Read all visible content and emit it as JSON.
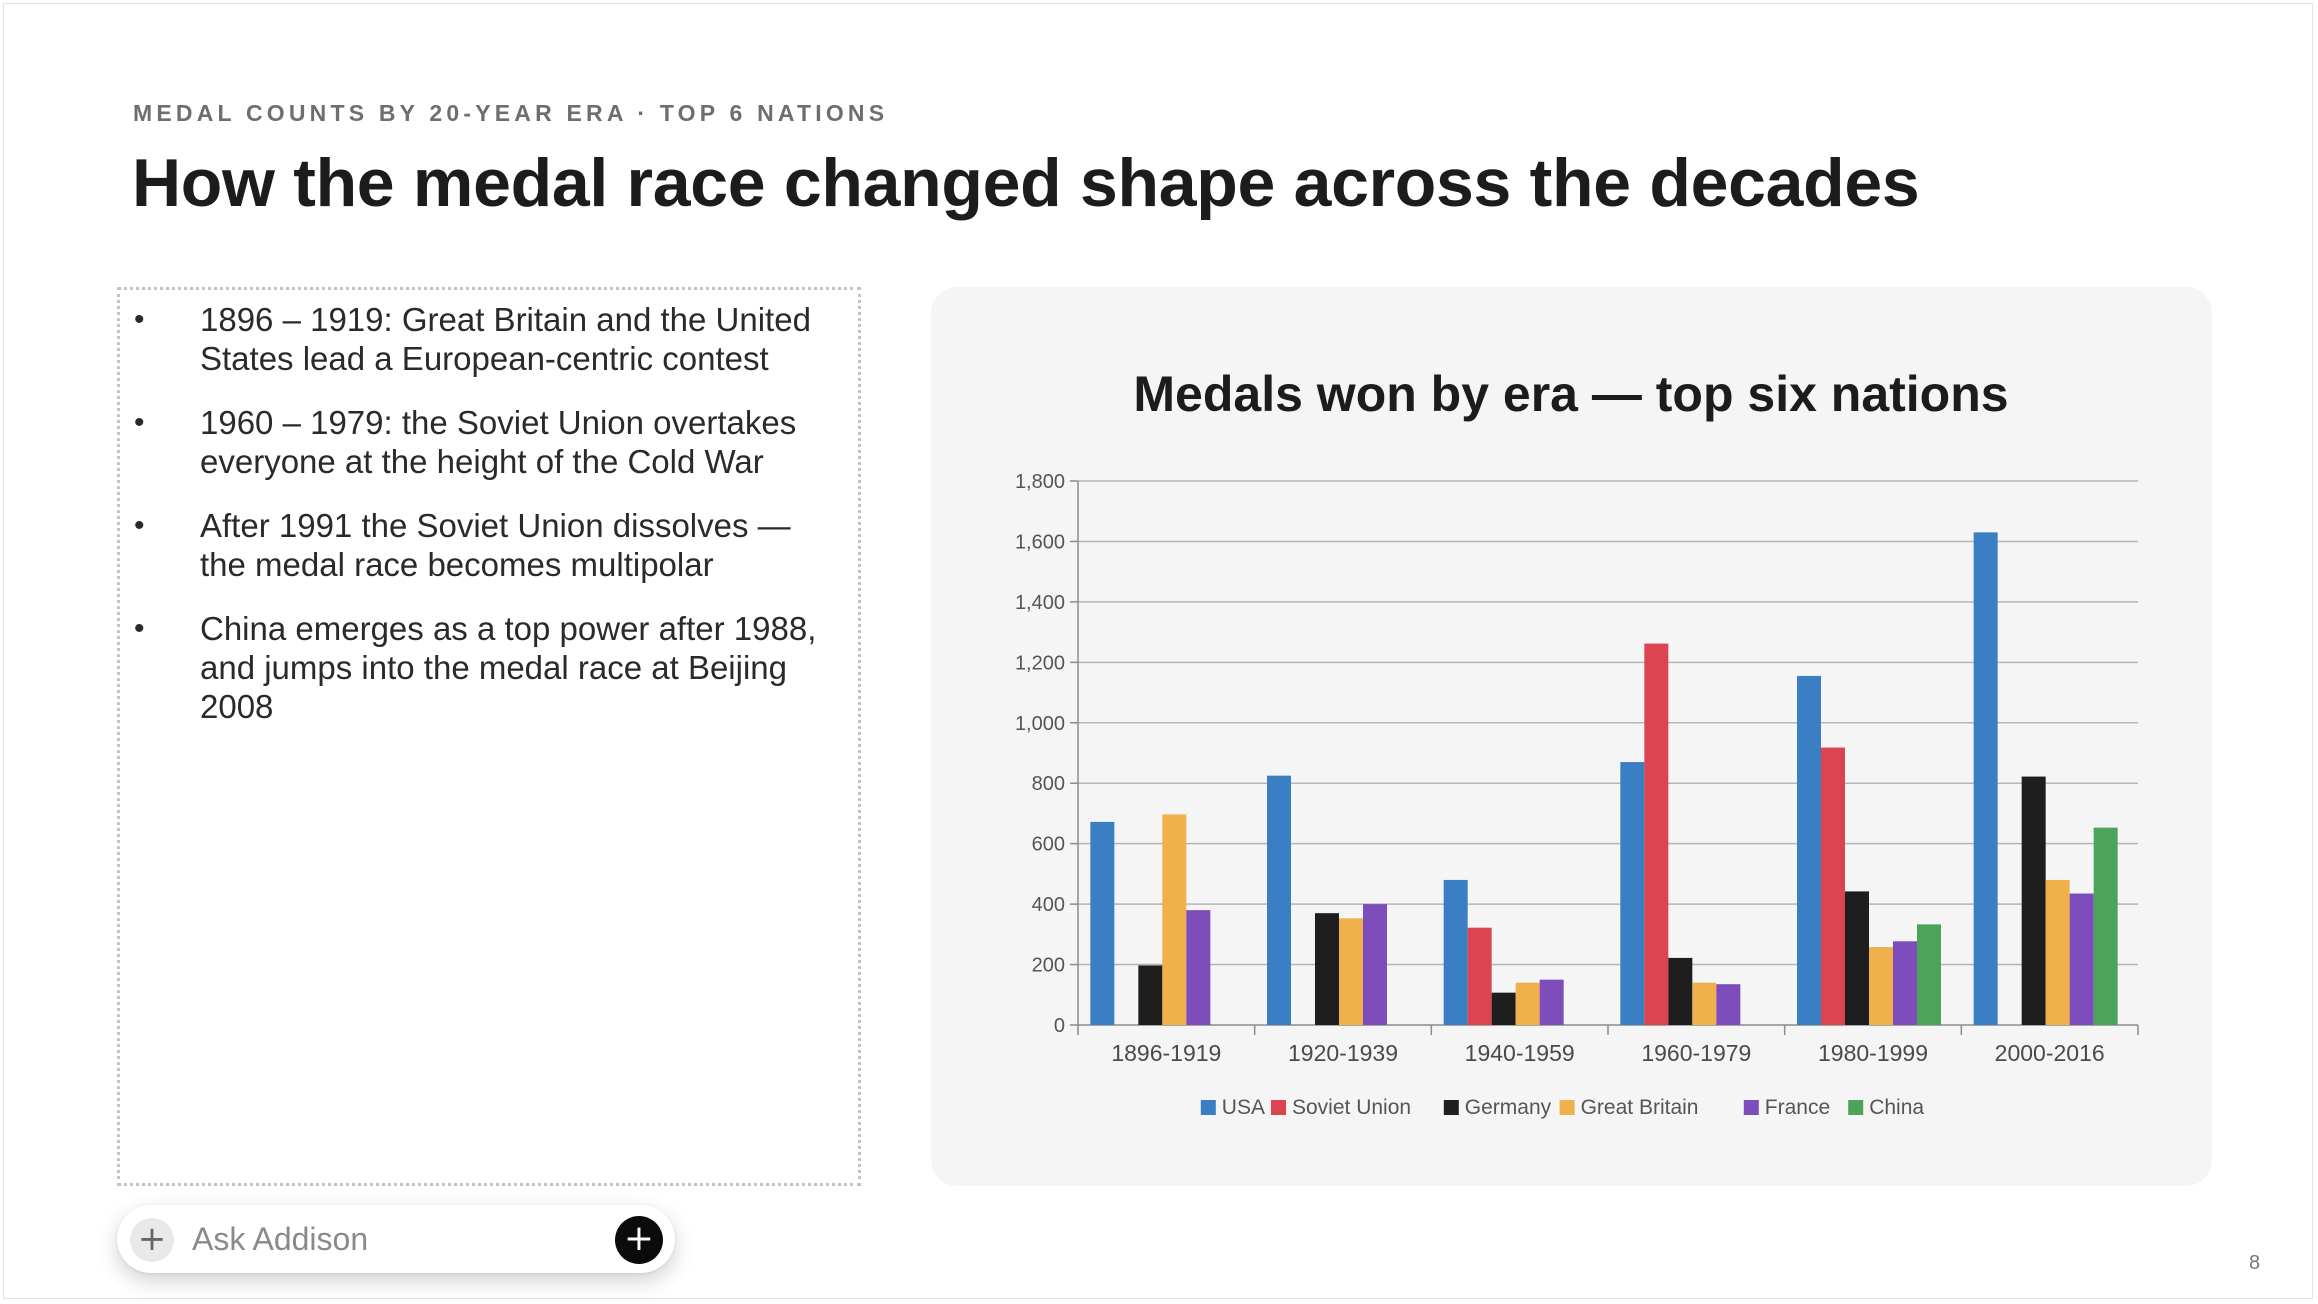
{
  "slide": {
    "eyebrow": "MEDAL COUNTS BY 20-YEAR ERA · TOP 6 NATIONS",
    "title": "How the medal race changed shape across the decades",
    "page_number": "8"
  },
  "notes": {
    "bullets": [
      "1896 – 1919: Great Britain and the United States lead a European-centric contest",
      "1960 – 1979: the Soviet Union overtakes everyone at the height of the Cold War",
      "After 1991 the Soviet Union dissolves — the medal race becomes multipolar",
      "China emerges as a top power after 1988, and jumps into the medal race at Beijing 2008"
    ]
  },
  "ask_bar": {
    "placeholder": "Ask Addison",
    "add_icon": "plus-icon",
    "send_icon": "plus-circle-icon"
  },
  "chart_data": {
    "type": "bar",
    "title": "Medals won by era — top six nations",
    "xlabel": "",
    "ylabel": "",
    "categories": [
      "1896-1919",
      "1920-1939",
      "1940-1959",
      "1960-1979",
      "1980-1999",
      "2000-2016"
    ],
    "ylim": [
      0,
      1800
    ],
    "yticks": [
      0,
      200,
      400,
      600,
      800,
      1000,
      1200,
      1400,
      1600,
      1800
    ],
    "ytick_labels": [
      "0",
      "200",
      "400",
      "600",
      "800",
      "1,000",
      "1,200",
      "1,400",
      "1,600",
      "1,800"
    ],
    "grid": true,
    "legend_position": "bottom",
    "series": [
      {
        "name": "USA",
        "color": "#3a7fc4",
        "values": [
          672,
          825,
          480,
          870,
          1155,
          1630
        ]
      },
      {
        "name": "Soviet Union",
        "color": "#dc4452",
        "values": [
          0,
          0,
          322,
          1262,
          918,
          0
        ]
      },
      {
        "name": "Germany",
        "color": "#1e1e1e",
        "values": [
          197,
          370,
          107,
          222,
          442,
          822
        ]
      },
      {
        "name": "Great Britain",
        "color": "#f0b04c",
        "values": [
          697,
          353,
          140,
          140,
          258,
          480
        ]
      },
      {
        "name": "France",
        "color": "#7c4dbb",
        "values": [
          380,
          400,
          150,
          135,
          277,
          435
        ]
      },
      {
        "name": "China",
        "color": "#4ca45a",
        "values": [
          0,
          0,
          0,
          0,
          333,
          653
        ]
      }
    ]
  }
}
